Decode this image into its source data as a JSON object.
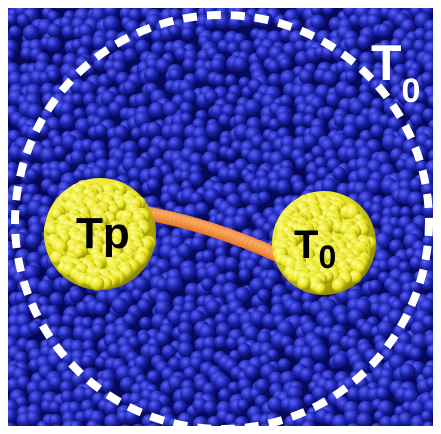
{
  "figure": {
    "bath_label": {
      "main": "T",
      "sub": "0"
    },
    "left_bead_label": {
      "main": "Tp",
      "sub": ""
    },
    "right_bead_label": {
      "main": "T",
      "sub": "0"
    }
  },
  "colors": {
    "frame": "#ffffff",
    "solvent_base": "#1a22a8",
    "solvent_highlight": "#5a62ff",
    "solvent_shadow": "#07095a",
    "bead_base": "#e8e420",
    "bead_highlight": "#ffff9a",
    "bead_shadow": "#8a8500",
    "linker_base": "#e06a10",
    "linker_highlight": "#ffb070",
    "circle_dash": "#ffffff",
    "label_text": "#000000",
    "bath_label_text": "#ffffff"
  }
}
